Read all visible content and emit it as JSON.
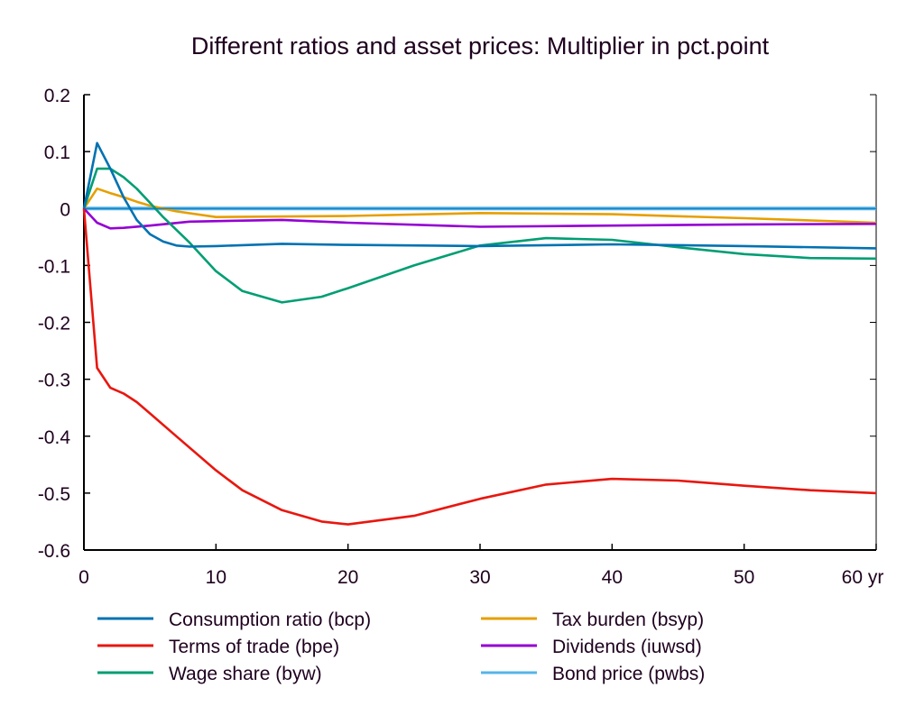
{
  "chart_data": {
    "type": "line",
    "title": "Different ratios and asset prices: Multiplier in pct.point",
    "xlabel": "",
    "ylabel": "",
    "xlim": [
      0,
      60
    ],
    "ylim": [
      -0.6,
      0.2
    ],
    "x_ticks": [
      0,
      10,
      20,
      30,
      40,
      50,
      60
    ],
    "x_tick_labels": [
      "0",
      "10",
      "20",
      "30",
      "40",
      "50",
      "60 yr"
    ],
    "y_ticks": [
      0.2,
      0.1,
      0,
      -0.1,
      -0.2,
      -0.3,
      -0.4,
      -0.5,
      -0.6
    ],
    "y_tick_labels": [
      "0.2",
      "0.1",
      "0",
      "-0.1",
      "-0.2",
      "-0.3",
      "-0.4",
      "-0.5",
      "-0.6"
    ],
    "grid": false,
    "legend_placement": "bottom",
    "series": [
      {
        "name": "Consumption ratio (bcp)",
        "color": "#0072b2",
        "points": [
          [
            0,
            0
          ],
          [
            1,
            0.115
          ],
          [
            2,
            0.07
          ],
          [
            3,
            0.02
          ],
          [
            4,
            -0.02
          ],
          [
            5,
            -0.045
          ],
          [
            6,
            -0.058
          ],
          [
            7,
            -0.065
          ],
          [
            8,
            -0.067
          ],
          [
            10,
            -0.066
          ],
          [
            15,
            -0.062
          ],
          [
            20,
            -0.064
          ],
          [
            30,
            -0.066
          ],
          [
            40,
            -0.063
          ],
          [
            50,
            -0.066
          ],
          [
            60,
            -0.07
          ]
        ]
      },
      {
        "name": "Terms of trade (bpe)",
        "color": "#e8170f",
        "points": [
          [
            0,
            0
          ],
          [
            1,
            -0.28
          ],
          [
            2,
            -0.315
          ],
          [
            3,
            -0.325
          ],
          [
            4,
            -0.34
          ],
          [
            5,
            -0.36
          ],
          [
            7,
            -0.4
          ],
          [
            10,
            -0.46
          ],
          [
            12,
            -0.495
          ],
          [
            15,
            -0.53
          ],
          [
            18,
            -0.55
          ],
          [
            20,
            -0.555
          ],
          [
            25,
            -0.54
          ],
          [
            30,
            -0.51
          ],
          [
            35,
            -0.485
          ],
          [
            40,
            -0.475
          ],
          [
            45,
            -0.478
          ],
          [
            50,
            -0.487
          ],
          [
            55,
            -0.495
          ],
          [
            60,
            -0.5
          ]
        ]
      },
      {
        "name": "Wage share (byw)",
        "color": "#009e73",
        "points": [
          [
            0,
            0
          ],
          [
            1,
            0.07
          ],
          [
            2,
            0.07
          ],
          [
            3,
            0.055
          ],
          [
            4,
            0.035
          ],
          [
            5,
            0.01
          ],
          [
            6,
            -0.015
          ],
          [
            8,
            -0.06
          ],
          [
            10,
            -0.11
          ],
          [
            12,
            -0.145
          ],
          [
            15,
            -0.165
          ],
          [
            18,
            -0.155
          ],
          [
            20,
            -0.14
          ],
          [
            25,
            -0.1
          ],
          [
            30,
            -0.065
          ],
          [
            35,
            -0.052
          ],
          [
            40,
            -0.055
          ],
          [
            45,
            -0.068
          ],
          [
            50,
            -0.08
          ],
          [
            55,
            -0.087
          ],
          [
            60,
            -0.088
          ]
        ]
      },
      {
        "name": "Tax burden (bsyp)",
        "color": "#e69f00",
        "points": [
          [
            0,
            0
          ],
          [
            1,
            0.035
          ],
          [
            2,
            0.027
          ],
          [
            3,
            0.02
          ],
          [
            4,
            0.012
          ],
          [
            5,
            0.005
          ],
          [
            7,
            -0.005
          ],
          [
            10,
            -0.015
          ],
          [
            20,
            -0.013
          ],
          [
            30,
            -0.008
          ],
          [
            40,
            -0.01
          ],
          [
            50,
            -0.017
          ],
          [
            60,
            -0.025
          ]
        ]
      },
      {
        "name": "Dividends (iuwsd)",
        "color": "#9400d3",
        "points": [
          [
            0,
            0
          ],
          [
            1,
            -0.025
          ],
          [
            2,
            -0.035
          ],
          [
            3,
            -0.034
          ],
          [
            5,
            -0.03
          ],
          [
            8,
            -0.023
          ],
          [
            15,
            -0.02
          ],
          [
            20,
            -0.025
          ],
          [
            30,
            -0.032
          ],
          [
            40,
            -0.03
          ],
          [
            50,
            -0.028
          ],
          [
            60,
            -0.027
          ]
        ]
      },
      {
        "name": "Bond price (pwbs)",
        "color": "#56b4e9",
        "points": [
          [
            0,
            0
          ],
          [
            60,
            0
          ]
        ]
      }
    ]
  }
}
